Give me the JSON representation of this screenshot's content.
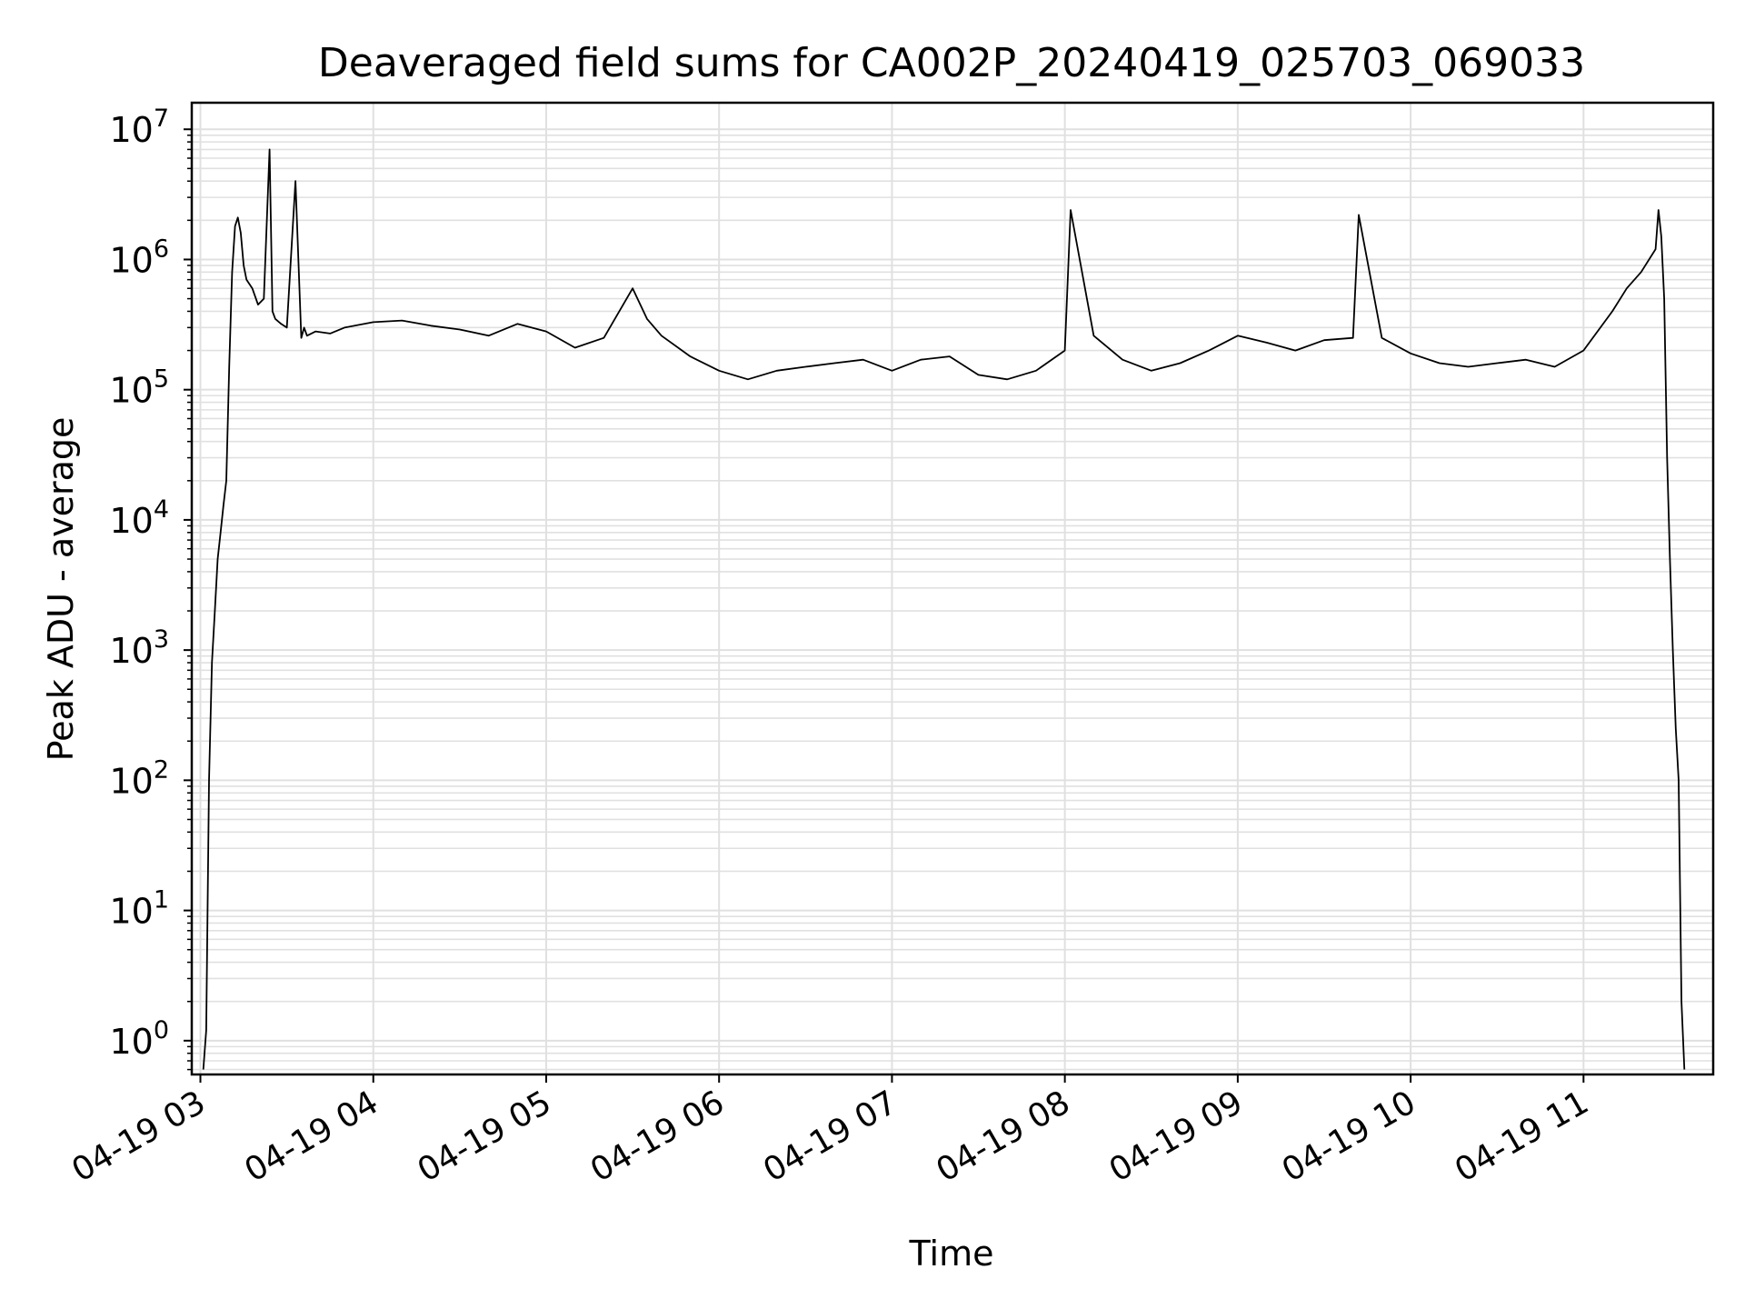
{
  "chart_data": {
    "type": "line",
    "title": "Deaveraged field sums for CA002P_20240419_025703_069033",
    "xlabel": "Time",
    "ylabel": "Peak ADU - average",
    "y_scale": "log",
    "ylim": [
      0.55,
      16000000
    ],
    "xlim": [
      "2024-04-19 02:57",
      "2024-04-19 11:45"
    ],
    "x_ticks": [
      "04-19 03",
      "04-19 04",
      "04-19 05",
      "04-19 06",
      "04-19 07",
      "04-19 08",
      "04-19 09",
      "04-19 10",
      "04-19 11"
    ],
    "y_ticks": [
      {
        "base": "10",
        "exp": "0"
      },
      {
        "base": "10",
        "exp": "1"
      },
      {
        "base": "10",
        "exp": "2"
      },
      {
        "base": "10",
        "exp": "3"
      },
      {
        "base": "10",
        "exp": "4"
      },
      {
        "base": "10",
        "exp": "5"
      },
      {
        "base": "10",
        "exp": "6"
      },
      {
        "base": "10",
        "exp": "7"
      }
    ],
    "grid": true,
    "line_color": "#000000",
    "series": [
      {
        "x": [
          "03:01",
          "03:02",
          "03:03",
          "03:04",
          "03:05",
          "03:06",
          "03:07",
          "03:08",
          "03:09",
          "03:10",
          "03:11",
          "03:12",
          "03:13",
          "03:14",
          "03:15",
          "03:16",
          "03:18",
          "03:20",
          "03:22",
          "03:24",
          "03:25",
          "03:26",
          "03:28",
          "03:30",
          "03:33",
          "03:35",
          "03:36",
          "03:37",
          "03:40",
          "03:45",
          "03:50",
          "04:00",
          "04:10",
          "04:20",
          "04:30",
          "04:40",
          "04:50",
          "05:00",
          "05:10",
          "05:20",
          "05:30",
          "05:35",
          "05:40",
          "05:50",
          "06:00",
          "06:10",
          "06:20",
          "06:30",
          "06:40",
          "06:50",
          "07:00",
          "07:10",
          "07:20",
          "07:30",
          "07:40",
          "07:50",
          "08:00",
          "08:02",
          "08:10",
          "08:20",
          "08:30",
          "08:40",
          "08:50",
          "09:00",
          "09:10",
          "09:20",
          "09:30",
          "09:40",
          "09:42",
          "09:50",
          "10:00",
          "10:10",
          "10:20",
          "10:30",
          "10:40",
          "10:50",
          "11:00",
          "11:10",
          "11:15",
          "11:20",
          "11:25",
          "11:26",
          "11:27",
          "11:28",
          "11:29",
          "11:30",
          "11:31",
          "11:32",
          "11:33",
          "11:34",
          "11:35"
        ],
        "y": [
          0.6,
          1.2,
          100,
          800,
          2000,
          5000,
          8000,
          13000,
          20000,
          150000,
          800000,
          1800000,
          2100000,
          1600000,
          900000,
          700000,
          600000,
          450000,
          500000,
          7000000,
          400000,
          350000,
          320000,
          300000,
          4000000,
          250000,
          300000,
          260000,
          280000,
          270000,
          300000,
          330000,
          340000,
          310000,
          290000,
          260000,
          320000,
          280000,
          210000,
          250000,
          600000,
          350000,
          260000,
          180000,
          140000,
          120000,
          140000,
          150000,
          160000,
          170000,
          140000,
          170000,
          180000,
          130000,
          120000,
          140000,
          200000,
          2400000,
          260000,
          170000,
          140000,
          160000,
          200000,
          260000,
          230000,
          200000,
          240000,
          250000,
          2200000,
          250000,
          190000,
          160000,
          150000,
          160000,
          170000,
          150000,
          200000,
          400000,
          600000,
          800000,
          1200000,
          2400000,
          1500000,
          500000,
          30000,
          5000,
          1000,
          250,
          100,
          2,
          0.6
        ]
      }
    ]
  }
}
